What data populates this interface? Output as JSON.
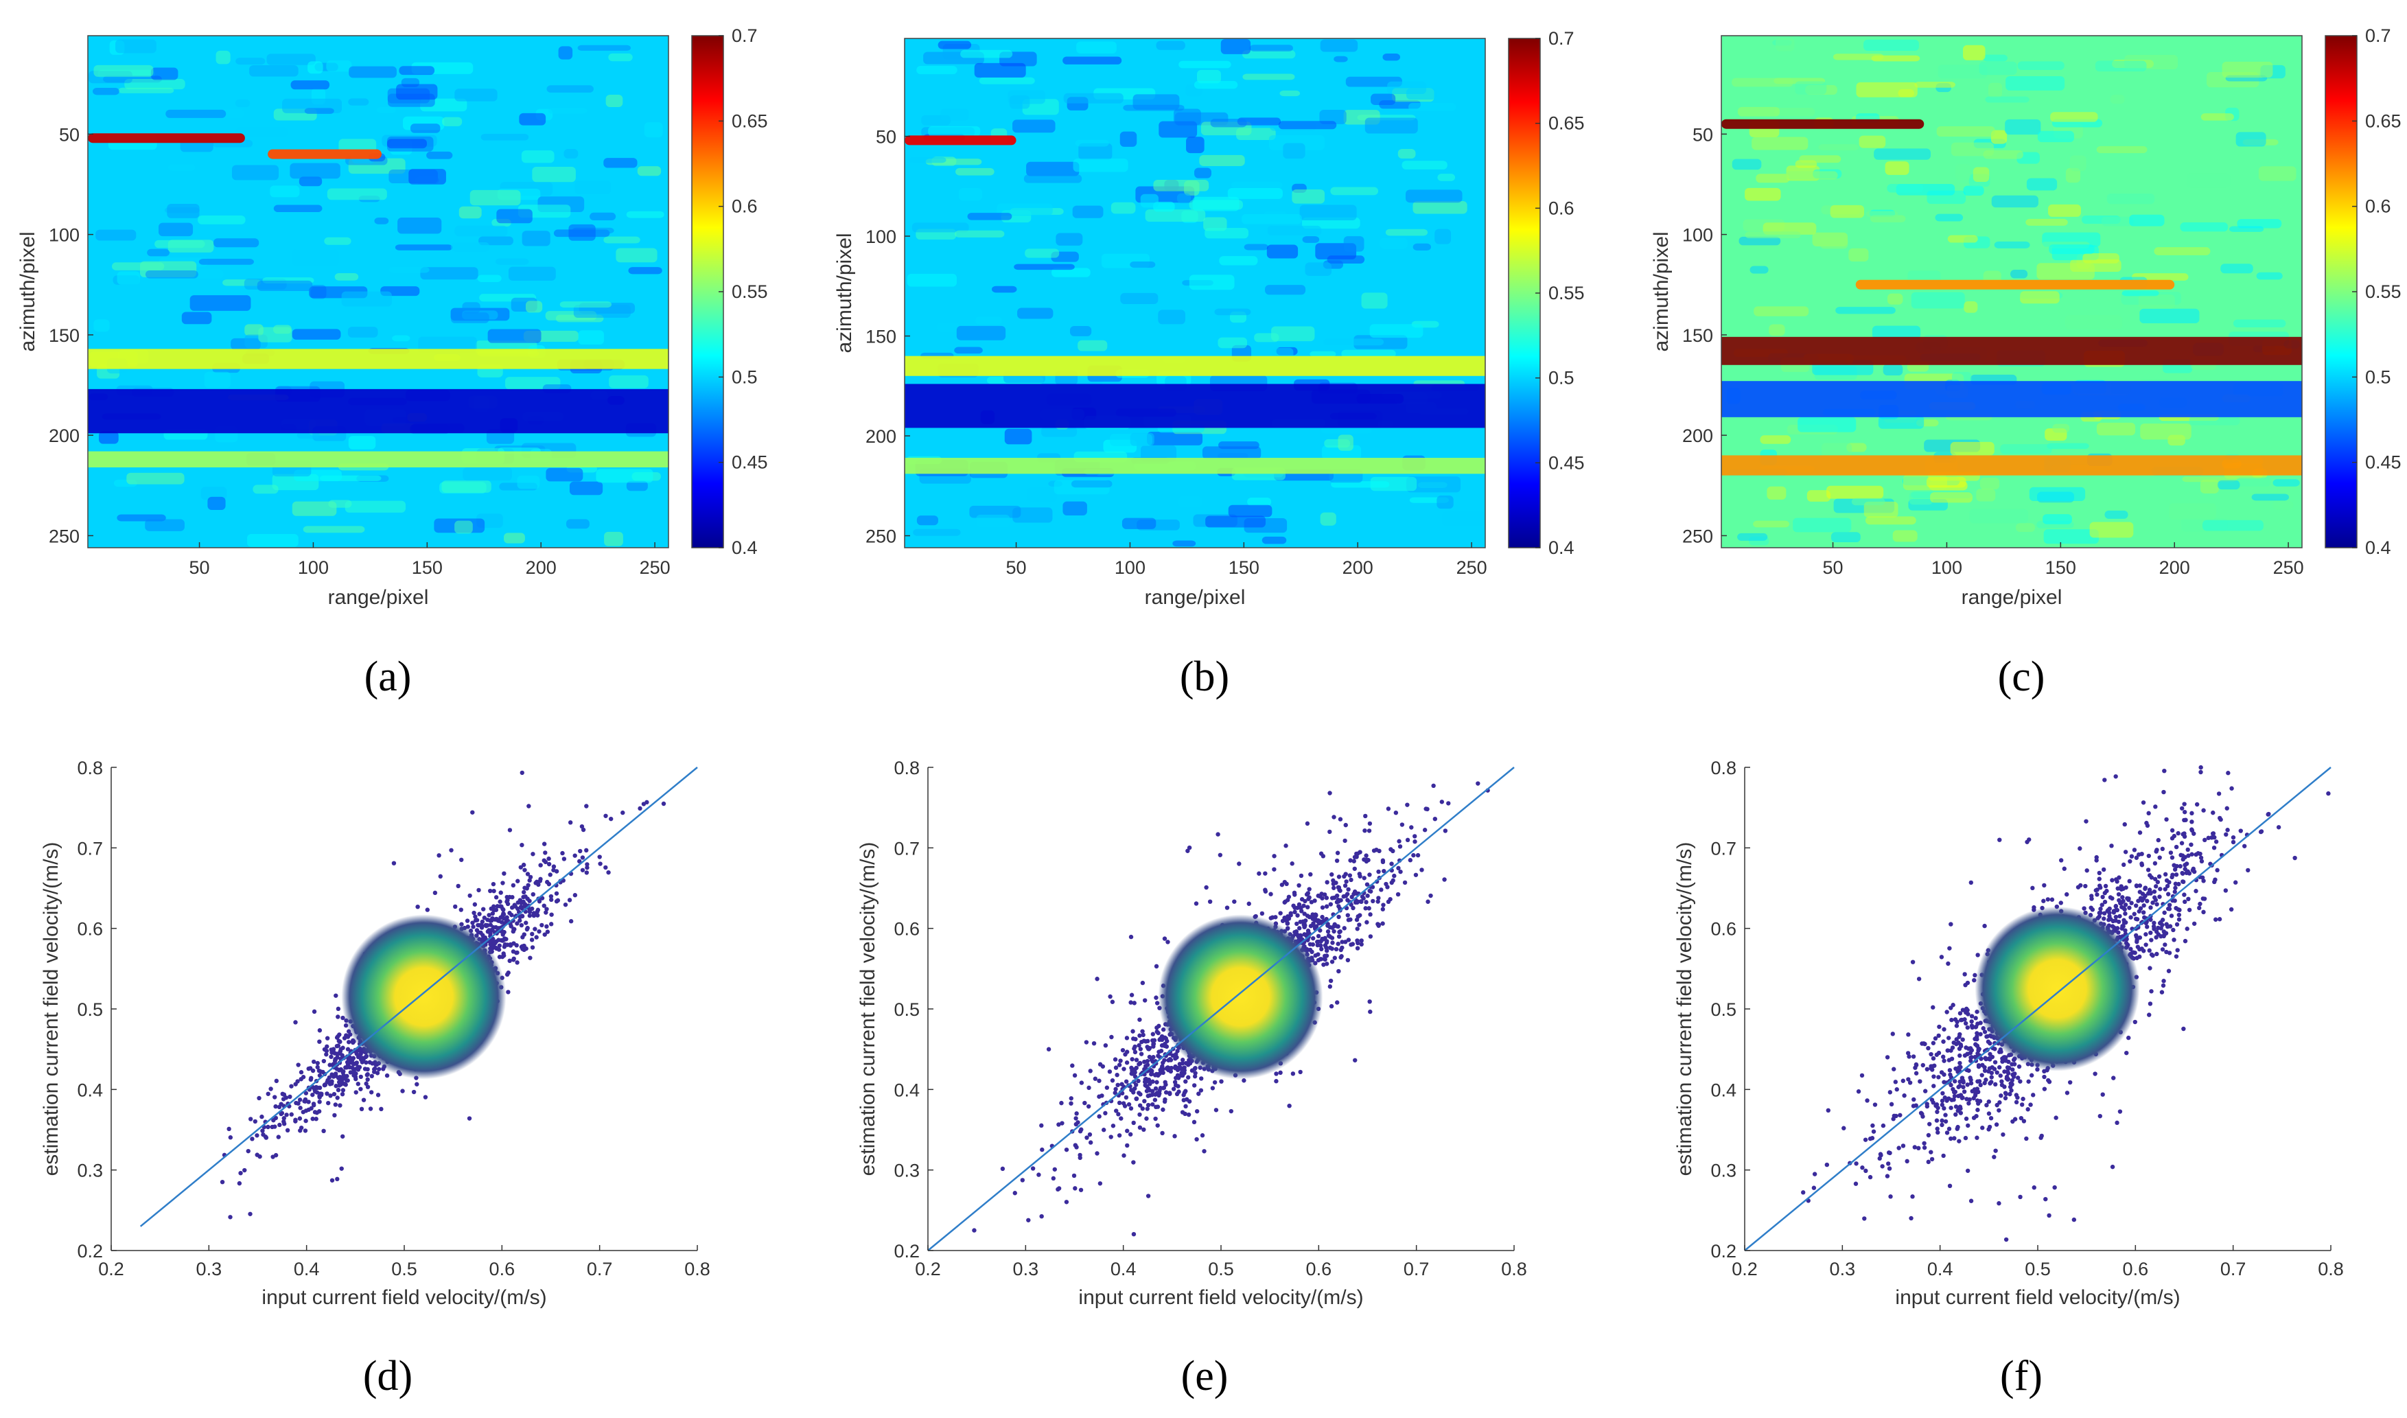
{
  "figure": {
    "panel_labels": [
      "(a)",
      "(b)",
      "(c)",
      "(d)",
      "(e)",
      "(f)"
    ]
  },
  "chart_data": [
    {
      "type": "heatmap",
      "panel": "(a)",
      "xlabel": "range/pixel",
      "ylabel": "azimuth/pixel",
      "xlim": [
        1,
        256
      ],
      "ylim": [
        1,
        256
      ],
      "xticks": [
        50,
        100,
        150,
        200,
        250
      ],
      "yticks": [
        50,
        100,
        150,
        200,
        250
      ],
      "colorbar": {
        "clim": [
          0.4,
          0.7
        ],
        "ticks": [
          0.4,
          0.45,
          0.5,
          0.55,
          0.6,
          0.65,
          0.7
        ],
        "colormap": "jet"
      },
      "background_value": 0.5,
      "features": [
        {
          "kind": "band",
          "azimuth": 162,
          "width": 10,
          "value": 0.58
        },
        {
          "kind": "band",
          "azimuth": 188,
          "width": 22,
          "value": 0.42
        },
        {
          "kind": "band",
          "azimuth": 212,
          "width": 8,
          "value": 0.56
        },
        {
          "kind": "streak",
          "azimuth": 52,
          "range_from": 1,
          "range_to": 70,
          "value": 0.68
        },
        {
          "kind": "streak",
          "azimuth": 60,
          "range_from": 80,
          "range_to": 130,
          "value": 0.64
        }
      ]
    },
    {
      "type": "heatmap",
      "panel": "(b)",
      "xlabel": "range/pixel",
      "ylabel": "azimuth/pixel",
      "xlim": [
        1,
        256
      ],
      "ylim": [
        1,
        256
      ],
      "xticks": [
        50,
        100,
        150,
        200,
        250
      ],
      "yticks": [
        50,
        100,
        150,
        200,
        250
      ],
      "colorbar": {
        "clim": [
          0.4,
          0.7
        ],
        "ticks": [
          0.4,
          0.45,
          0.5,
          0.55,
          0.6,
          0.65,
          0.7
        ],
        "colormap": "jet"
      },
      "background_value": 0.5,
      "features": [
        {
          "kind": "band",
          "azimuth": 165,
          "width": 10,
          "value": 0.58
        },
        {
          "kind": "band",
          "azimuth": 185,
          "width": 22,
          "value": 0.42
        },
        {
          "kind": "band",
          "azimuth": 215,
          "width": 8,
          "value": 0.56
        },
        {
          "kind": "streak",
          "azimuth": 52,
          "range_from": 1,
          "range_to": 50,
          "value": 0.67
        }
      ]
    },
    {
      "type": "heatmap",
      "panel": "(c)",
      "xlabel": "range/pixel",
      "ylabel": "azimuth/pixel",
      "xlim": [
        1,
        256
      ],
      "ylim": [
        1,
        256
      ],
      "xticks": [
        50,
        100,
        150,
        200,
        250
      ],
      "yticks": [
        50,
        100,
        150,
        200,
        250
      ],
      "colorbar": {
        "clim": [
          0.4,
          0.7
        ],
        "ticks": [
          0.4,
          0.45,
          0.5,
          0.55,
          0.6,
          0.65,
          0.7
        ],
        "colormap": "jet"
      },
      "background_value": 0.54,
      "features": [
        {
          "kind": "band",
          "azimuth": 158,
          "width": 14,
          "value": 0.7
        },
        {
          "kind": "band",
          "azimuth": 182,
          "width": 18,
          "value": 0.46
        },
        {
          "kind": "band",
          "azimuth": 215,
          "width": 10,
          "value": 0.62
        },
        {
          "kind": "streak",
          "azimuth": 45,
          "range_from": 1,
          "range_to": 90,
          "value": 0.7
        },
        {
          "kind": "streak",
          "azimuth": 125,
          "range_from": 60,
          "range_to": 200,
          "value": 0.62
        }
      ]
    },
    {
      "type": "scatter",
      "panel": "(d)",
      "xlabel": "input current field velocity/(m/s)",
      "ylabel": "estimation current field velocity/(m/s)",
      "xlim": [
        0.2,
        0.8
      ],
      "ylim": [
        0.2,
        0.8
      ],
      "xticks": [
        0.2,
        0.3,
        0.4,
        0.5,
        0.6,
        0.7,
        0.8
      ],
      "yticks": [
        0.2,
        0.3,
        0.4,
        0.5,
        0.6,
        0.7,
        0.8
      ],
      "reference_line": {
        "from": [
          0.23,
          0.23
        ],
        "to": [
          0.8,
          0.8
        ]
      },
      "density_peak": {
        "x": 0.52,
        "y": 0.515
      },
      "spread": {
        "x_sd": 0.07,
        "residual_sd": 0.025
      },
      "points": 1600,
      "seed": 11
    },
    {
      "type": "scatter",
      "panel": "(e)",
      "xlabel": "input current field velocity/(m/s)",
      "ylabel": "estimation current field velocity/(m/s)",
      "xlim": [
        0.2,
        0.8
      ],
      "ylim": [
        0.2,
        0.8
      ],
      "xticks": [
        0.2,
        0.3,
        0.4,
        0.5,
        0.6,
        0.7,
        0.8
      ],
      "yticks": [
        0.2,
        0.3,
        0.4,
        0.5,
        0.6,
        0.7,
        0.8
      ],
      "reference_line": {
        "from": [
          0.2,
          0.2
        ],
        "to": [
          0.8,
          0.8
        ]
      },
      "density_peak": {
        "x": 0.52,
        "y": 0.515
      },
      "spread": {
        "x_sd": 0.075,
        "residual_sd": 0.035
      },
      "points": 1700,
      "seed": 23
    },
    {
      "type": "scatter",
      "panel": "(f)",
      "xlabel": "input current field velocity/(m/s)",
      "ylabel": "estimation current field velocity/(m/s)",
      "xlim": [
        0.2,
        0.8
      ],
      "ylim": [
        0.2,
        0.8
      ],
      "xticks": [
        0.2,
        0.3,
        0.4,
        0.5,
        0.6,
        0.7,
        0.8
      ],
      "yticks": [
        0.2,
        0.3,
        0.4,
        0.5,
        0.6,
        0.7,
        0.8
      ],
      "reference_line": {
        "from": [
          0.2,
          0.2
        ],
        "to": [
          0.8,
          0.8
        ]
      },
      "density_peak": {
        "x": 0.52,
        "y": 0.525
      },
      "spread": {
        "x_sd": 0.08,
        "residual_sd": 0.045
      },
      "points": 1800,
      "seed": 37
    }
  ]
}
